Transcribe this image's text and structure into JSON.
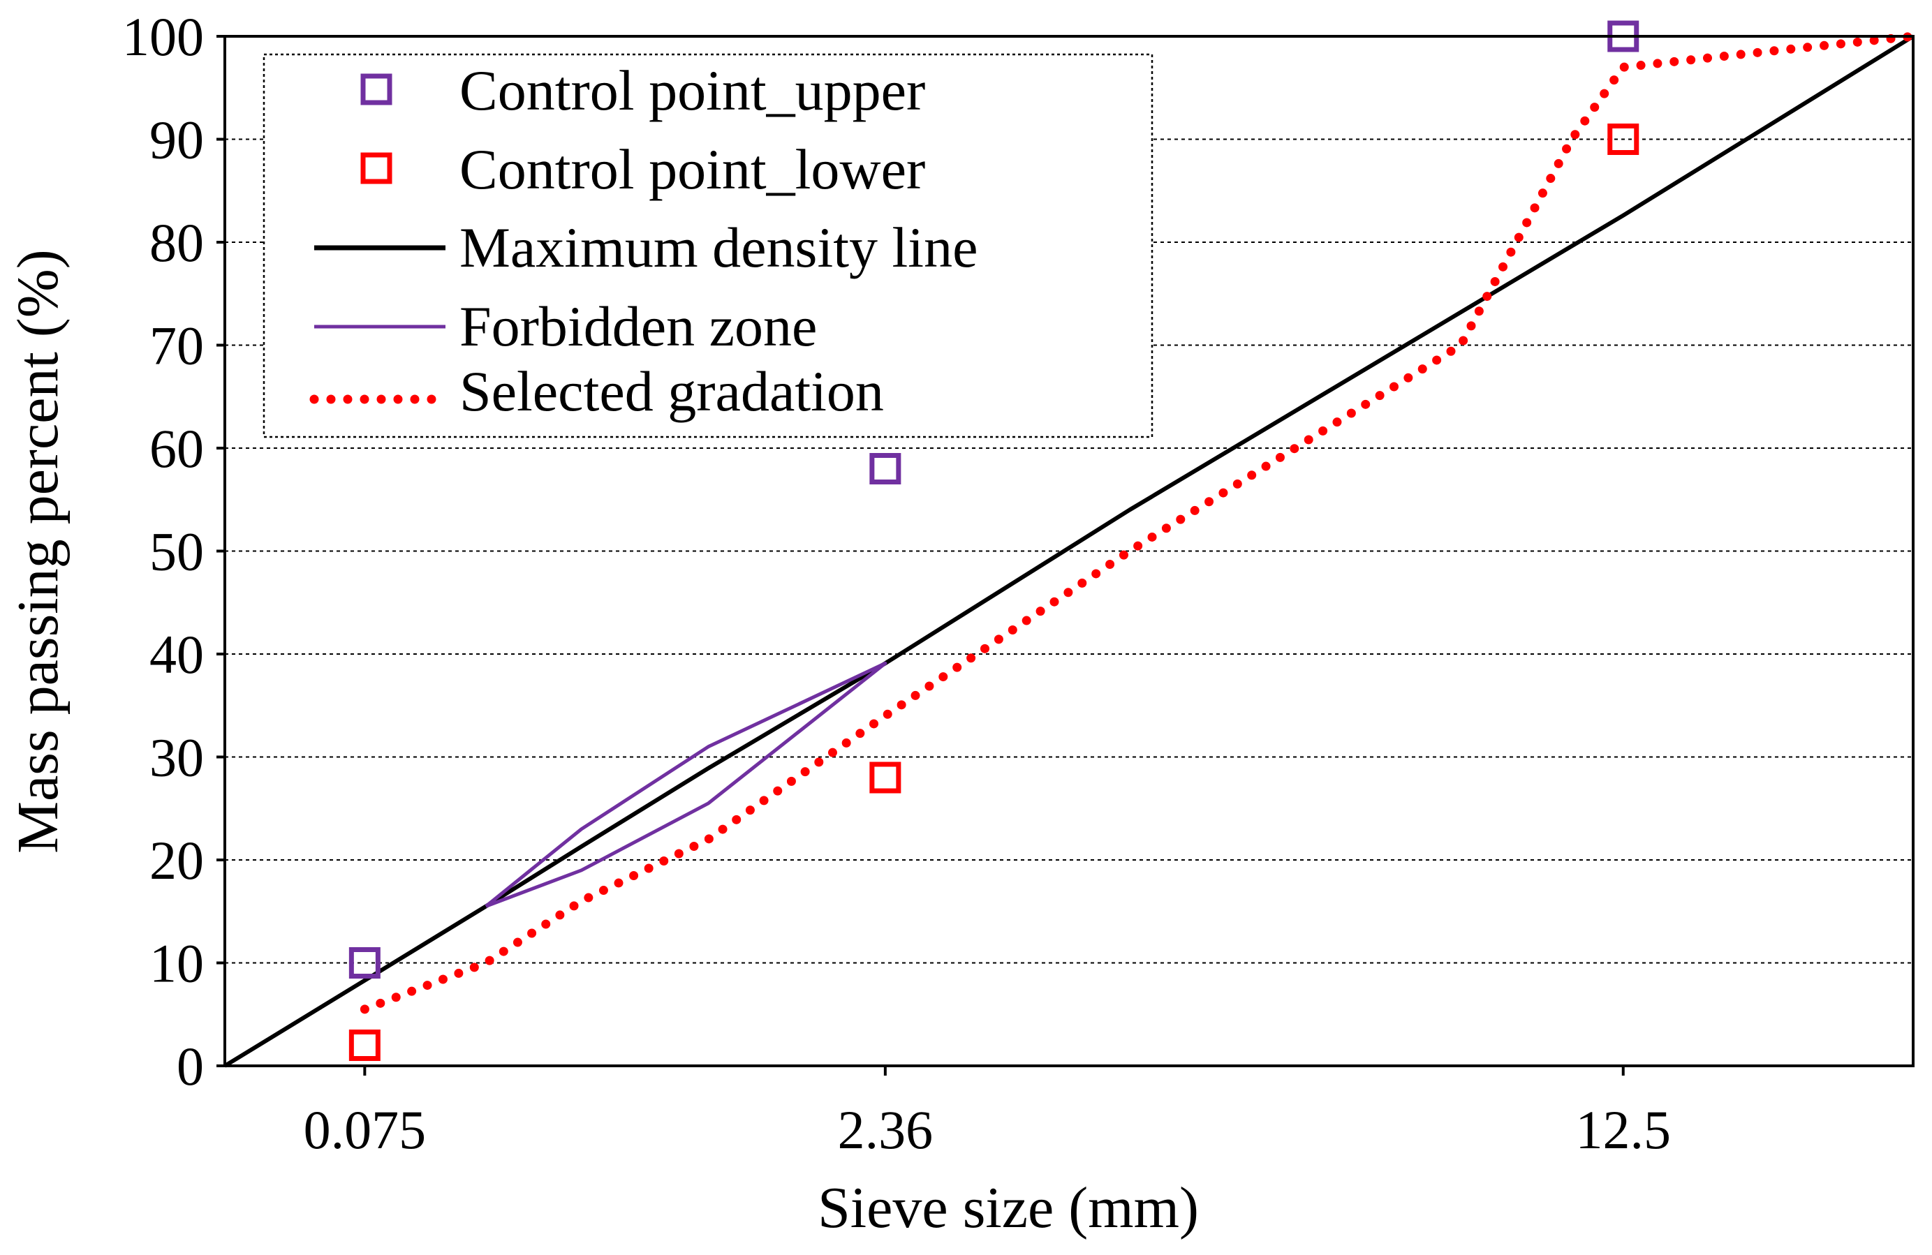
{
  "chart_data": {
    "type": "line",
    "title": "",
    "xlabel": "Sieve size (mm)",
    "ylabel": "Mass passing percent (%)",
    "x_scale": "power 0.45",
    "xlim": [
      0,
      19
    ],
    "ylim": [
      0,
      100
    ],
    "x_ticks": [
      {
        "value": 0.075,
        "label": "0.075"
      },
      {
        "value": 2.36,
        "label": "2.36"
      },
      {
        "value": 12.5,
        "label": "12.5"
      }
    ],
    "y_ticks": [
      {
        "value": 0,
        "label": "0"
      },
      {
        "value": 10,
        "label": "10"
      },
      {
        "value": 20,
        "label": "20"
      },
      {
        "value": 30,
        "label": "30"
      },
      {
        "value": 40,
        "label": "40"
      },
      {
        "value": 50,
        "label": "50"
      },
      {
        "value": 60,
        "label": "60"
      },
      {
        "value": 70,
        "label": "70"
      },
      {
        "value": 80,
        "label": "80"
      },
      {
        "value": 90,
        "label": "90"
      },
      {
        "value": 100,
        "label": "100"
      }
    ],
    "grid": "horizontal dotted",
    "legend_position": "top-left",
    "series": [
      {
        "name": "Control point_upper",
        "kind": "marker",
        "color": "#7030a0",
        "points": [
          [
            0.075,
            10
          ],
          [
            2.36,
            58
          ],
          [
            12.5,
            100
          ]
        ]
      },
      {
        "name": "Control point_lower",
        "kind": "marker",
        "color": "#ff0000",
        "points": [
          [
            0.075,
            2
          ],
          [
            2.36,
            28
          ],
          [
            12.5,
            90
          ]
        ]
      },
      {
        "name": "Maximum density line",
        "kind": "solid",
        "color": "#000000",
        "points": [
          [
            0,
            0
          ],
          [
            0.075,
            8.3
          ],
          [
            0.3,
            15.5
          ],
          [
            0.6,
            21.3
          ],
          [
            1.18,
            28.9
          ],
          [
            2.36,
            39.1
          ],
          [
            4.75,
            54.0
          ],
          [
            9.5,
            73.2
          ],
          [
            12.5,
            82.6
          ],
          [
            19,
            100
          ]
        ]
      },
      {
        "name": "Forbidden zone",
        "kind": "solid",
        "color": "#7030a0",
        "points": [
          [
            0.3,
            15.5
          ],
          [
            0.6,
            23.0
          ],
          [
            1.18,
            31.0
          ],
          [
            2.36,
            39.1
          ],
          [
            1.18,
            25.5
          ],
          [
            0.6,
            19.0
          ],
          [
            0.3,
            15.5
          ]
        ]
      },
      {
        "name": "Selected gradation",
        "kind": "dotted",
        "color": "#ff0000",
        "points": [
          [
            0.075,
            5.5
          ],
          [
            0.3,
            10
          ],
          [
            0.6,
            16
          ],
          [
            1.18,
            22
          ],
          [
            2.36,
            34
          ],
          [
            4.75,
            50
          ],
          [
            9.5,
            70
          ],
          [
            11.5,
            90
          ],
          [
            12.5,
            97
          ],
          [
            15.5,
            98.5
          ],
          [
            19,
            100
          ]
        ]
      }
    ]
  }
}
